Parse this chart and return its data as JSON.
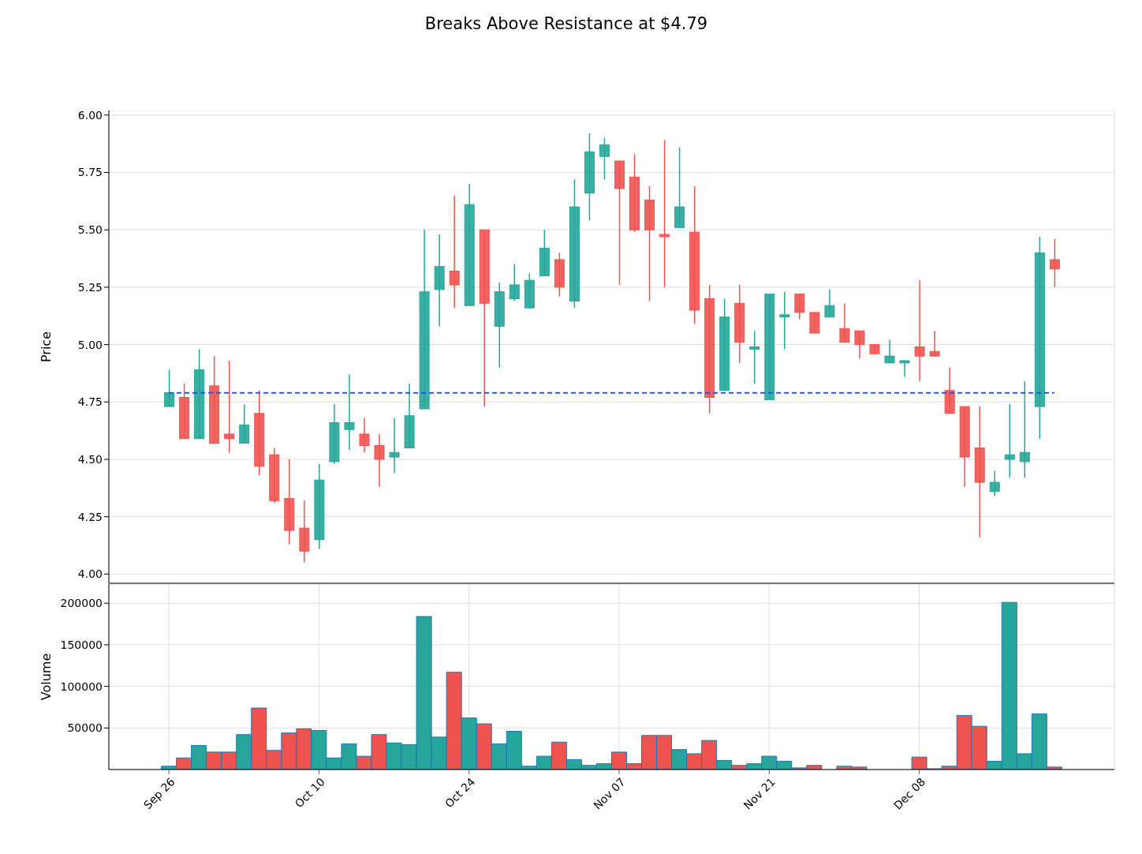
{
  "chart_data": [
    {
      "type": "candlestick",
      "title": "Breaks Above Resistance at $4.79",
      "ylabel": "Price",
      "ohlc": [
        [
          4.73,
          4.89,
          4.73,
          4.79
        ],
        [
          4.77,
          4.83,
          4.59,
          4.59
        ],
        [
          4.59,
          4.98,
          4.59,
          4.89
        ],
        [
          4.82,
          4.95,
          4.57,
          4.57
        ],
        [
          4.61,
          4.93,
          4.53,
          4.59
        ],
        [
          4.57,
          4.74,
          4.57,
          4.65
        ],
        [
          4.7,
          4.8,
          4.43,
          4.47
        ],
        [
          4.52,
          4.55,
          4.31,
          4.32
        ],
        [
          4.33,
          4.5,
          4.13,
          4.19
        ],
        [
          4.2,
          4.32,
          4.05,
          4.1
        ],
        [
          4.15,
          4.48,
          4.11,
          4.41
        ],
        [
          4.49,
          4.74,
          4.48,
          4.66
        ],
        [
          4.63,
          4.87,
          4.54,
          4.66
        ],
        [
          4.61,
          4.68,
          4.53,
          4.56
        ],
        [
          4.56,
          4.61,
          4.38,
          4.5
        ],
        [
          4.51,
          4.68,
          4.44,
          4.53
        ],
        [
          4.55,
          4.83,
          4.55,
          4.69
        ],
        [
          4.72,
          5.5,
          4.72,
          5.23
        ],
        [
          5.24,
          5.48,
          5.08,
          5.34
        ],
        [
          5.32,
          5.65,
          5.16,
          5.26
        ],
        [
          5.17,
          5.7,
          5.17,
          5.61
        ],
        [
          5.5,
          5.5,
          4.73,
          5.18
        ],
        [
          5.08,
          5.27,
          4.9,
          5.23
        ],
        [
          5.2,
          5.35,
          5.19,
          5.26
        ],
        [
          5.16,
          5.31,
          5.16,
          5.28
        ],
        [
          5.3,
          5.5,
          5.3,
          5.42
        ],
        [
          5.37,
          5.4,
          5.21,
          5.25
        ],
        [
          5.19,
          5.72,
          5.16,
          5.6
        ],
        [
          5.66,
          5.92,
          5.54,
          5.84
        ],
        [
          5.82,
          5.9,
          5.72,
          5.87
        ],
        [
          5.8,
          5.8,
          5.26,
          5.68
        ],
        [
          5.73,
          5.83,
          5.49,
          5.5
        ],
        [
          5.63,
          5.69,
          5.19,
          5.5
        ],
        [
          5.48,
          5.89,
          5.25,
          5.47
        ],
        [
          5.51,
          5.86,
          5.51,
          5.6
        ],
        [
          5.49,
          5.69,
          5.09,
          5.15
        ],
        [
          5.2,
          5.26,
          4.7,
          4.77
        ],
        [
          4.8,
          5.2,
          4.8,
          5.12
        ],
        [
          5.18,
          5.26,
          4.92,
          5.01
        ],
        [
          4.98,
          5.06,
          4.83,
          4.99
        ],
        [
          4.76,
          5.22,
          4.76,
          5.22
        ],
        [
          5.12,
          5.23,
          4.98,
          5.13
        ],
        [
          5.22,
          5.22,
          5.11,
          5.14
        ],
        [
          5.14,
          5.14,
          5.05,
          5.05
        ],
        [
          5.12,
          5.24,
          5.12,
          5.17
        ],
        [
          5.07,
          5.18,
          5.01,
          5.01
        ],
        [
          5.06,
          5.06,
          4.94,
          5.0
        ],
        [
          5.0,
          5.0,
          4.96,
          4.96
        ],
        [
          4.92,
          5.02,
          4.92,
          4.95
        ],
        [
          4.92,
          4.93,
          4.86,
          4.93
        ],
        [
          4.99,
          5.28,
          4.84,
          4.95
        ],
        [
          4.97,
          5.06,
          4.95,
          4.95
        ],
        [
          4.8,
          4.9,
          4.7,
          4.7
        ],
        [
          4.73,
          4.73,
          4.38,
          4.51
        ],
        [
          4.55,
          4.73,
          4.16,
          4.4
        ],
        [
          4.36,
          4.45,
          4.34,
          4.4
        ],
        [
          4.5,
          4.74,
          4.42,
          4.52
        ],
        [
          4.49,
          4.84,
          4.42,
          4.53
        ],
        [
          4.73,
          5.47,
          4.59,
          5.4
        ],
        [
          5.37,
          5.46,
          5.25,
          5.33
        ]
      ],
      "colors": [
        "#26a69a",
        "#ef5350",
        "#26a69a",
        "#ef5350",
        "#ef5350",
        "#26a69a",
        "#ef5350",
        "#ef5350",
        "#ef5350",
        "#ef5350",
        "#26a69a",
        "#26a69a",
        "#26a69a",
        "#ef5350",
        "#ef5350",
        "#26a69a",
        "#26a69a",
        "#26a69a",
        "#26a69a",
        "#ef5350",
        "#26a69a",
        "#ef5350",
        "#26a69a",
        "#26a69a",
        "#26a69a",
        "#26a69a",
        "#ef5350",
        "#26a69a",
        "#26a69a",
        "#26a69a",
        "#ef5350",
        "#ef5350",
        "#ef5350",
        "#ef5350",
        "#26a69a",
        "#ef5350",
        "#ef5350",
        "#26a69a",
        "#ef5350",
        "#26a69a",
        "#26a69a",
        "#26a69a",
        "#ef5350",
        "#ef5350",
        "#26a69a",
        "#ef5350",
        "#ef5350",
        "#ef5350",
        "#26a69a",
        "#26a69a",
        "#ef5350",
        "#ef5350",
        "#ef5350",
        "#ef5350",
        "#ef5350",
        "#26a69a",
        "#26a69a",
        "#26a69a",
        "#26a69a",
        "#ef5350"
      ],
      "ylim": [
        3.96,
        6.02
      ],
      "yticks": [
        {
          "value": 4,
          "label": "4.00"
        },
        {
          "value": 4.25,
          "label": "4.25"
        },
        {
          "value": 4.5,
          "label": "4.50"
        },
        {
          "value": 4.75,
          "label": "4.75"
        },
        {
          "value": 5,
          "label": "5.00"
        },
        {
          "value": 5.25,
          "label": "5.25"
        },
        {
          "value": 5.5,
          "label": "5.50"
        },
        {
          "value": 5.75,
          "label": "5.75"
        },
        {
          "value": 6,
          "label": "6.00"
        }
      ],
      "ref_lines": [
        {
          "axis": "y",
          "value": 4.79,
          "color": "#2255ee",
          "line_style": "dashed"
        }
      ],
      "grid": true,
      "tick_labels": "y"
    },
    {
      "type": "bar",
      "ylabel": "Volume",
      "categories": [
        "Sep 26",
        null,
        null,
        null,
        null,
        null,
        null,
        null,
        null,
        null,
        "Oct 10",
        null,
        null,
        null,
        null,
        null,
        null,
        null,
        null,
        null,
        "Oct 24",
        null,
        null,
        null,
        null,
        null,
        null,
        null,
        null,
        null,
        "Nov 07",
        null,
        null,
        null,
        null,
        null,
        null,
        null,
        null,
        null,
        "Nov 21",
        null,
        null,
        null,
        null,
        null,
        null,
        null,
        null,
        null,
        "Dec 08",
        null,
        null,
        null,
        null,
        null,
        null,
        null,
        null,
        null
      ],
      "values": [
        4000,
        14000,
        29000,
        21000,
        21000,
        42000,
        74000,
        23000,
        44000,
        49000,
        47000,
        14000,
        31000,
        16000,
        42000,
        32000,
        30000,
        184000,
        39000,
        117000,
        62000,
        55000,
        31000,
        46000,
        4000,
        16000,
        33000,
        12000,
        5000,
        7000,
        21000,
        7000,
        41000,
        41000,
        24000,
        19000,
        35000,
        11000,
        5000,
        7000,
        16000,
        10000,
        2000,
        5000,
        0,
        4000,
        3000,
        0,
        0,
        0,
        15000,
        1000,
        4000,
        65000,
        52000,
        10000,
        201000,
        19000,
        67000,
        3000
      ],
      "colors": [
        "#26a69a",
        "#ef5350",
        "#26a69a",
        "#ef5350",
        "#ef5350",
        "#26a69a",
        "#ef5350",
        "#ef5350",
        "#ef5350",
        "#ef5350",
        "#26a69a",
        "#26a69a",
        "#26a69a",
        "#ef5350",
        "#ef5350",
        "#26a69a",
        "#26a69a",
        "#26a69a",
        "#26a69a",
        "#ef5350",
        "#26a69a",
        "#ef5350",
        "#26a69a",
        "#26a69a",
        "#26a69a",
        "#26a69a",
        "#ef5350",
        "#26a69a",
        "#26a69a",
        "#26a69a",
        "#ef5350",
        "#ef5350",
        "#ef5350",
        "#ef5350",
        "#26a69a",
        "#ef5350",
        "#ef5350",
        "#26a69a",
        "#ef5350",
        "#26a69a",
        "#26a69a",
        "#26a69a",
        "#ef5350",
        "#ef5350",
        "#26a69a",
        "#ef5350",
        "#ef5350",
        "#ef5350",
        "#26a69a",
        "#26a69a",
        "#ef5350",
        "#ef5350",
        "#ef5350",
        "#ef5350",
        "#ef5350",
        "#26a69a",
        "#26a69a",
        "#26a69a",
        "#26a69a",
        "#ef5350"
      ],
      "ylim": [
        0,
        223000
      ],
      "yticks": [
        50000,
        100000,
        150000,
        200000
      ],
      "grid": true
    }
  ]
}
